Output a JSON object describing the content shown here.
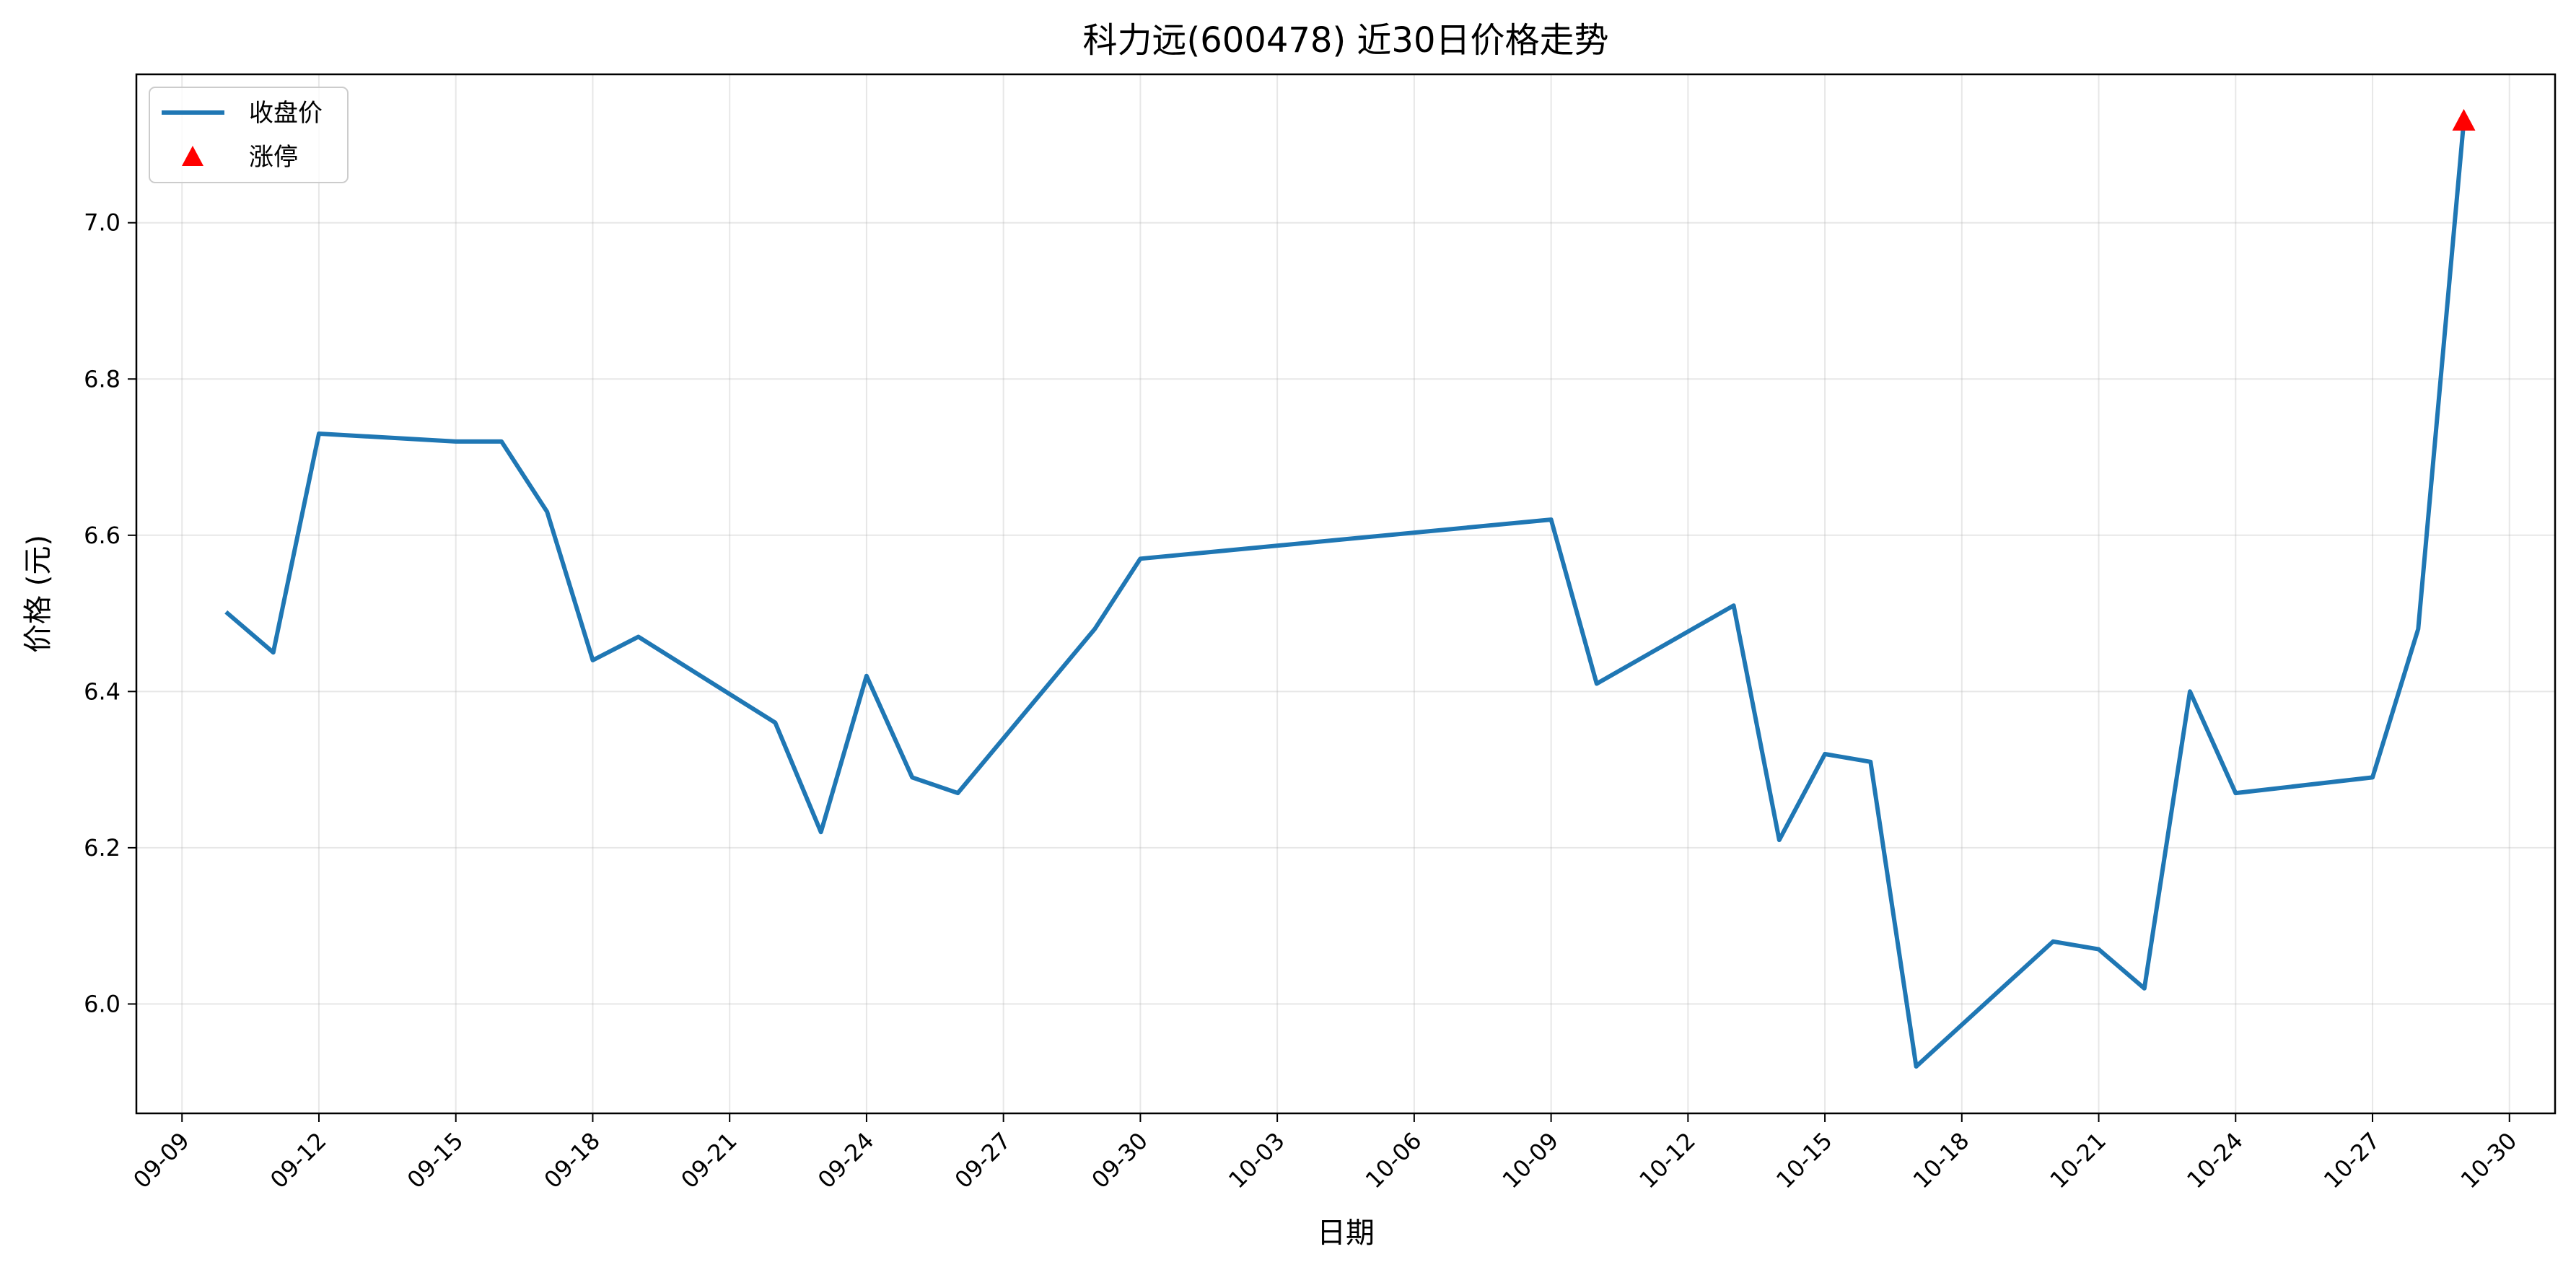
{
  "chart_data": {
    "type": "line",
    "title": "科力远(600478) 近30日价格走势",
    "xlabel": "日期",
    "ylabel": "价格 (元)",
    "x": [
      "2025-09-10",
      "2025-09-11",
      "2025-09-12",
      "2025-09-15",
      "2025-09-16",
      "2025-09-17",
      "2025-09-18",
      "2025-09-19",
      "2025-09-22",
      "2025-09-23",
      "2025-09-24",
      "2025-09-25",
      "2025-09-26",
      "2025-09-29",
      "2025-09-30",
      "2025-10-09",
      "2025-10-10",
      "2025-10-13",
      "2025-10-14",
      "2025-10-15",
      "2025-10-16",
      "2025-10-17",
      "2025-10-20",
      "2025-10-21",
      "2025-10-22",
      "2025-10-23",
      "2025-10-24",
      "2025-10-27",
      "2025-10-28",
      "2025-10-29"
    ],
    "series": [
      {
        "name": "收盘价",
        "color": "#1f77b4",
        "values": [
          6.5,
          6.45,
          6.73,
          6.72,
          6.72,
          6.63,
          6.44,
          6.47,
          6.36,
          6.22,
          6.42,
          6.29,
          6.27,
          6.48,
          6.57,
          6.62,
          6.41,
          6.51,
          6.21,
          6.32,
          6.31,
          5.92,
          6.08,
          6.07,
          6.02,
          6.4,
          6.27,
          6.29,
          6.48,
          7.13
        ]
      }
    ],
    "markers": [
      {
        "name": "涨停",
        "color": "#ff0000",
        "shape": "triangle",
        "points": [
          {
            "x": "2025-10-29",
            "y": 7.13
          }
        ]
      }
    ],
    "xticks": [
      "2025-09-09",
      "2025-09-12",
      "2025-09-15",
      "2025-09-18",
      "2025-09-21",
      "2025-09-24",
      "2025-09-27",
      "2025-09-30",
      "2025-10-03",
      "2025-10-06",
      "2025-10-09",
      "2025-10-12",
      "2025-10-15",
      "2025-10-18",
      "2025-10-21",
      "2025-10-24",
      "2025-10-27",
      "2025-10-30"
    ],
    "xtick_labels": [
      "09-09",
      "09-12",
      "09-15",
      "09-18",
      "09-21",
      "09-24",
      "09-27",
      "09-30",
      "10-03",
      "10-06",
      "10-09",
      "10-12",
      "10-15",
      "10-18",
      "10-21",
      "10-24",
      "10-27",
      "10-30"
    ],
    "xlim": [
      "2025-09-08",
      "2025-10-31"
    ],
    "yticks": [
      6.0,
      6.2,
      6.4,
      6.6,
      6.8,
      7.0
    ],
    "ytick_labels": [
      "6.0",
      "6.2",
      "6.4",
      "6.6",
      "6.8",
      "7.0"
    ],
    "ylim": [
      5.86,
      7.19
    ],
    "grid": true,
    "legend": "top-left"
  }
}
